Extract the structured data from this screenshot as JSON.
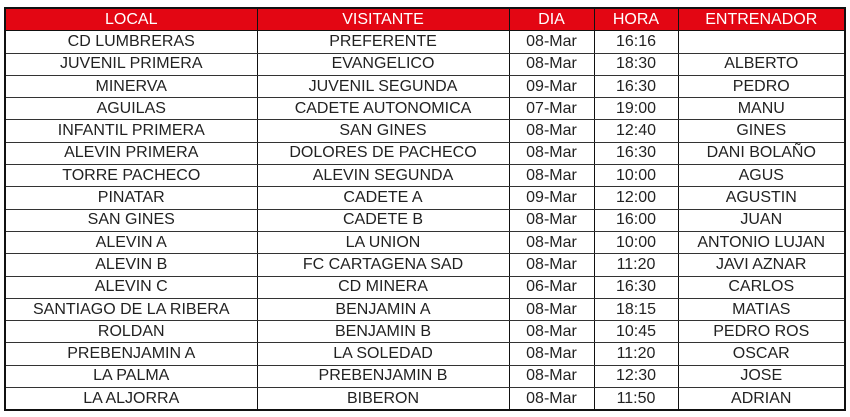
{
  "colors": {
    "header_bg": "#e30613",
    "header_text": "#ffffff"
  },
  "headers": [
    "LOCAL",
    "VISITANTE",
    "DIA",
    "HORA",
    "ENTRENADOR"
  ],
  "rows": [
    [
      "CD LUMBRERAS",
      "PREFERENTE",
      "08-Mar",
      "16:16",
      ""
    ],
    [
      "JUVENIL PRIMERA",
      "EVANGELICO",
      "08-Mar",
      "18:30",
      "ALBERTO"
    ],
    [
      "MINERVA",
      "JUVENIL SEGUNDA",
      "09-Mar",
      "16:30",
      "PEDRO"
    ],
    [
      "AGUILAS",
      "CADETE AUTONOMICA",
      "07-Mar",
      "19:00",
      "MANU"
    ],
    [
      "INFANTIL PRIMERA",
      "SAN GINES",
      "08-Mar",
      "12:40",
      "GINES"
    ],
    [
      "ALEVIN PRIMERA",
      "DOLORES DE PACHECO",
      "08-Mar",
      "16:30",
      "DANI BOLAÑO"
    ],
    [
      "TORRE PACHECO",
      "ALEVIN SEGUNDA",
      "08-Mar",
      "10:00",
      "AGUS"
    ],
    [
      "PINATAR",
      "CADETE A",
      "09-Mar",
      "12:00",
      "AGUSTIN"
    ],
    [
      "SAN GINES",
      "CADETE B",
      "08-Mar",
      "16:00",
      "JUAN"
    ],
    [
      "ALEVIN A",
      "LA UNION",
      "08-Mar",
      "10:00",
      "ANTONIO LUJAN"
    ],
    [
      "ALEVIN B",
      "FC CARTAGENA SAD",
      "08-Mar",
      "11:20",
      "JAVI AZNAR"
    ],
    [
      "ALEVIN C",
      "CD MINERA",
      "06-Mar",
      "16:30",
      "CARLOS"
    ],
    [
      "SANTIAGO DE LA RIBERA",
      "BENJAMIN A",
      "08-Mar",
      "18:15",
      "MATIAS"
    ],
    [
      "ROLDAN",
      "BENJAMIN B",
      "08-Mar",
      "10:45",
      "PEDRO ROS"
    ],
    [
      "PREBENJAMIN A",
      "LA SOLEDAD",
      "08-Mar",
      "11:20",
      "OSCAR"
    ],
    [
      "LA PALMA",
      "PREBENJAMIN B",
      "08-Mar",
      "12:30",
      "JOSE"
    ],
    [
      "LA ALJORRA",
      "BIBERON",
      "08-Mar",
      "11:50",
      "ADRIAN"
    ]
  ]
}
